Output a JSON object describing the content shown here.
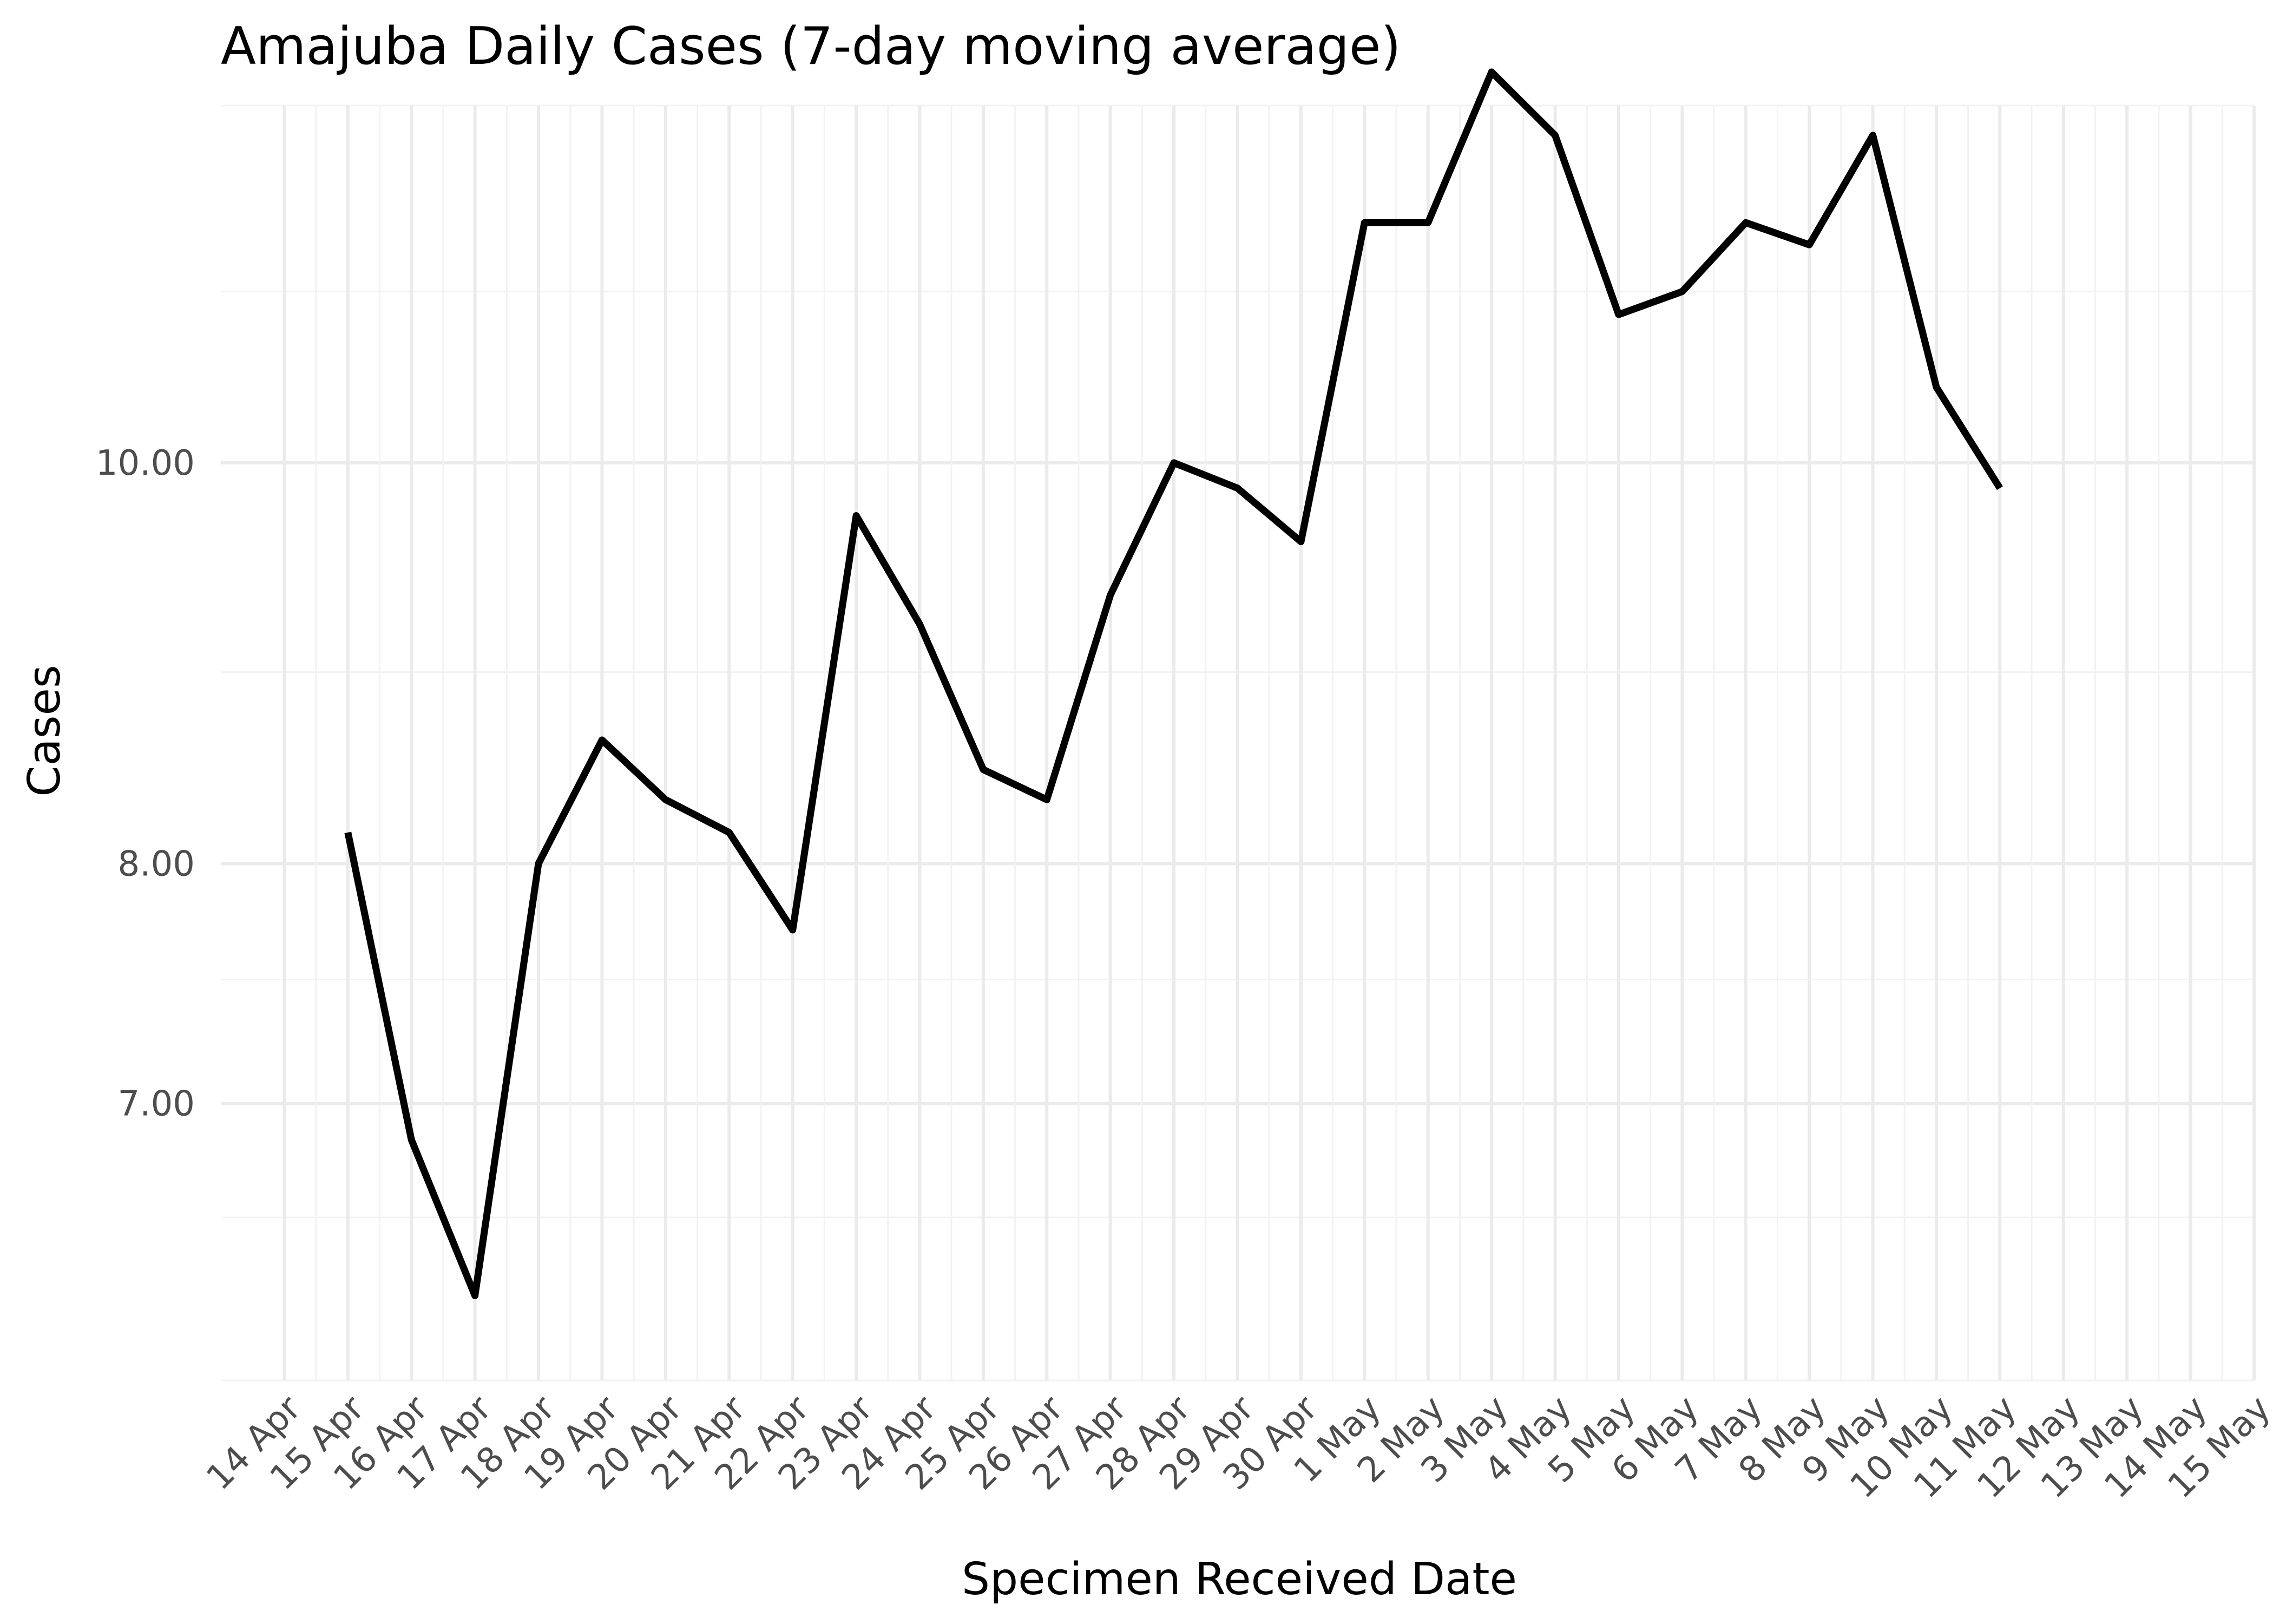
{
  "chart_data": {
    "type": "line",
    "title": "Amajuba Daily Cases (7-day moving average)",
    "xlabel": "Specimen Received Date",
    "ylabel": "Cases",
    "y_scale": "log",
    "ylim": [
      6.0,
      12.2
    ],
    "xlim": [
      "2020-04-13",
      "2020-05-15"
    ],
    "grid": true,
    "legend": "none",
    "line_color": "#000000",
    "x_ticks": [
      {
        "date": "2020-04-14",
        "label": "14 Apr"
      },
      {
        "date": "2020-04-15",
        "label": "15 Apr"
      },
      {
        "date": "2020-04-16",
        "label": "16 Apr"
      },
      {
        "date": "2020-04-17",
        "label": "17 Apr"
      },
      {
        "date": "2020-04-18",
        "label": "18 Apr"
      },
      {
        "date": "2020-04-19",
        "label": "19 Apr"
      },
      {
        "date": "2020-04-20",
        "label": "20 Apr"
      },
      {
        "date": "2020-04-21",
        "label": "21 Apr"
      },
      {
        "date": "2020-04-22",
        "label": "22 Apr"
      },
      {
        "date": "2020-04-23",
        "label": "23 Apr"
      },
      {
        "date": "2020-04-24",
        "label": "24 Apr"
      },
      {
        "date": "2020-04-25",
        "label": "25 Apr"
      },
      {
        "date": "2020-04-26",
        "label": "26 Apr"
      },
      {
        "date": "2020-04-27",
        "label": "27 Apr"
      },
      {
        "date": "2020-04-28",
        "label": "28 Apr"
      },
      {
        "date": "2020-04-29",
        "label": "29 Apr"
      },
      {
        "date": "2020-04-30",
        "label": "30 Apr"
      },
      {
        "date": "2020-05-01",
        "label": "1 May"
      },
      {
        "date": "2020-05-02",
        "label": "2 May"
      },
      {
        "date": "2020-05-03",
        "label": "3 May"
      },
      {
        "date": "2020-05-04",
        "label": "4 May"
      },
      {
        "date": "2020-05-05",
        "label": "5 May"
      },
      {
        "date": "2020-05-06",
        "label": "6 May"
      },
      {
        "date": "2020-05-07",
        "label": "7 May"
      },
      {
        "date": "2020-05-08",
        "label": "8 May"
      },
      {
        "date": "2020-05-09",
        "label": "9 May"
      },
      {
        "date": "2020-05-10",
        "label": "10 May"
      },
      {
        "date": "2020-05-11",
        "label": "11 May"
      },
      {
        "date": "2020-05-12",
        "label": "12 May"
      },
      {
        "date": "2020-05-13",
        "label": "13 May"
      },
      {
        "date": "2020-05-14",
        "label": "14 May"
      },
      {
        "date": "2020-05-15",
        "label": "15 May"
      }
    ],
    "y_ticks": [
      {
        "value": 7,
        "label": "7.00"
      },
      {
        "value": 8,
        "label": "8.00"
      },
      {
        "value": 10,
        "label": "10.00"
      }
    ],
    "y_minor_ticks": [
      6.0,
      6.57,
      7.5,
      8.9,
      11.0,
      12.2
    ],
    "series": [
      {
        "x": [
          "2020-04-15",
          "2020-04-16",
          "2020-04-17",
          "2020-04-18",
          "2020-04-19",
          "2020-04-20",
          "2020-04-21",
          "2020-04-22",
          "2020-04-23",
          "2020-04-24",
          "2020-04-25",
          "2020-04-26",
          "2020-04-27",
          "2020-04-28",
          "2020-04-29",
          "2020-04-30",
          "2020-05-01",
          "2020-05-02",
          "2020-05-03",
          "2020-05-04",
          "2020-05-05",
          "2020-05-06",
          "2020-05-07",
          "2020-05-08",
          "2020-05-09",
          "2020-05-10",
          "2020-05-11"
        ],
        "values": [
          8.14,
          6.86,
          6.29,
          8.0,
          8.57,
          8.29,
          8.14,
          7.71,
          9.71,
          9.14,
          8.43,
          8.29,
          9.29,
          10.0,
          9.86,
          9.57,
          11.43,
          11.43,
          12.43,
          12.0,
          10.86,
          11.0,
          11.43,
          11.29,
          12.0,
          10.43,
          9.86
        ]
      }
    ]
  }
}
